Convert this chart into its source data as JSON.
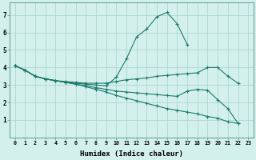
{
  "xlabel": "Humidex (Indice chaleur)",
  "bg_color": "#d4f0ec",
  "grid_color": "#aad8d3",
  "line_color": "#1a7a6e",
  "xlim": [
    -0.5,
    23.5
  ],
  "ylim": [
    0,
    7.7
  ],
  "yticks": [
    1,
    2,
    3,
    4,
    5,
    6,
    7
  ],
  "xticks": [
    0,
    1,
    2,
    3,
    4,
    5,
    6,
    7,
    8,
    9,
    10,
    11,
    12,
    13,
    14,
    15,
    16,
    17,
    18,
    19,
    20,
    21,
    22,
    23
  ],
  "series": [
    [
      4.1,
      3.85,
      3.5,
      3.35,
      3.25,
      3.15,
      3.1,
      3.05,
      3.0,
      2.95,
      3.45,
      4.5,
      5.75,
      6.2,
      6.9,
      7.15,
      6.5,
      5.3,
      null,
      null,
      null,
      null,
      null,
      null
    ],
    [
      4.1,
      3.85,
      3.5,
      3.35,
      3.25,
      3.2,
      3.15,
      3.1,
      3.1,
      3.1,
      3.2,
      3.3,
      3.35,
      3.4,
      3.5,
      3.55,
      3.6,
      3.65,
      3.7,
      4.0,
      4.0,
      3.5,
      3.1,
      null
    ],
    [
      4.1,
      3.85,
      3.5,
      3.35,
      3.25,
      3.15,
      3.05,
      2.95,
      2.85,
      2.75,
      2.65,
      2.6,
      2.55,
      2.5,
      2.45,
      2.4,
      2.35,
      2.65,
      2.75,
      2.7,
      2.15,
      1.65,
      0.8,
      null
    ],
    [
      4.1,
      3.85,
      3.5,
      3.35,
      3.25,
      3.15,
      3.05,
      2.9,
      2.75,
      2.6,
      2.4,
      2.25,
      2.1,
      1.95,
      1.8,
      1.65,
      1.55,
      1.45,
      1.35,
      1.2,
      1.1,
      0.9,
      0.8,
      null
    ]
  ]
}
